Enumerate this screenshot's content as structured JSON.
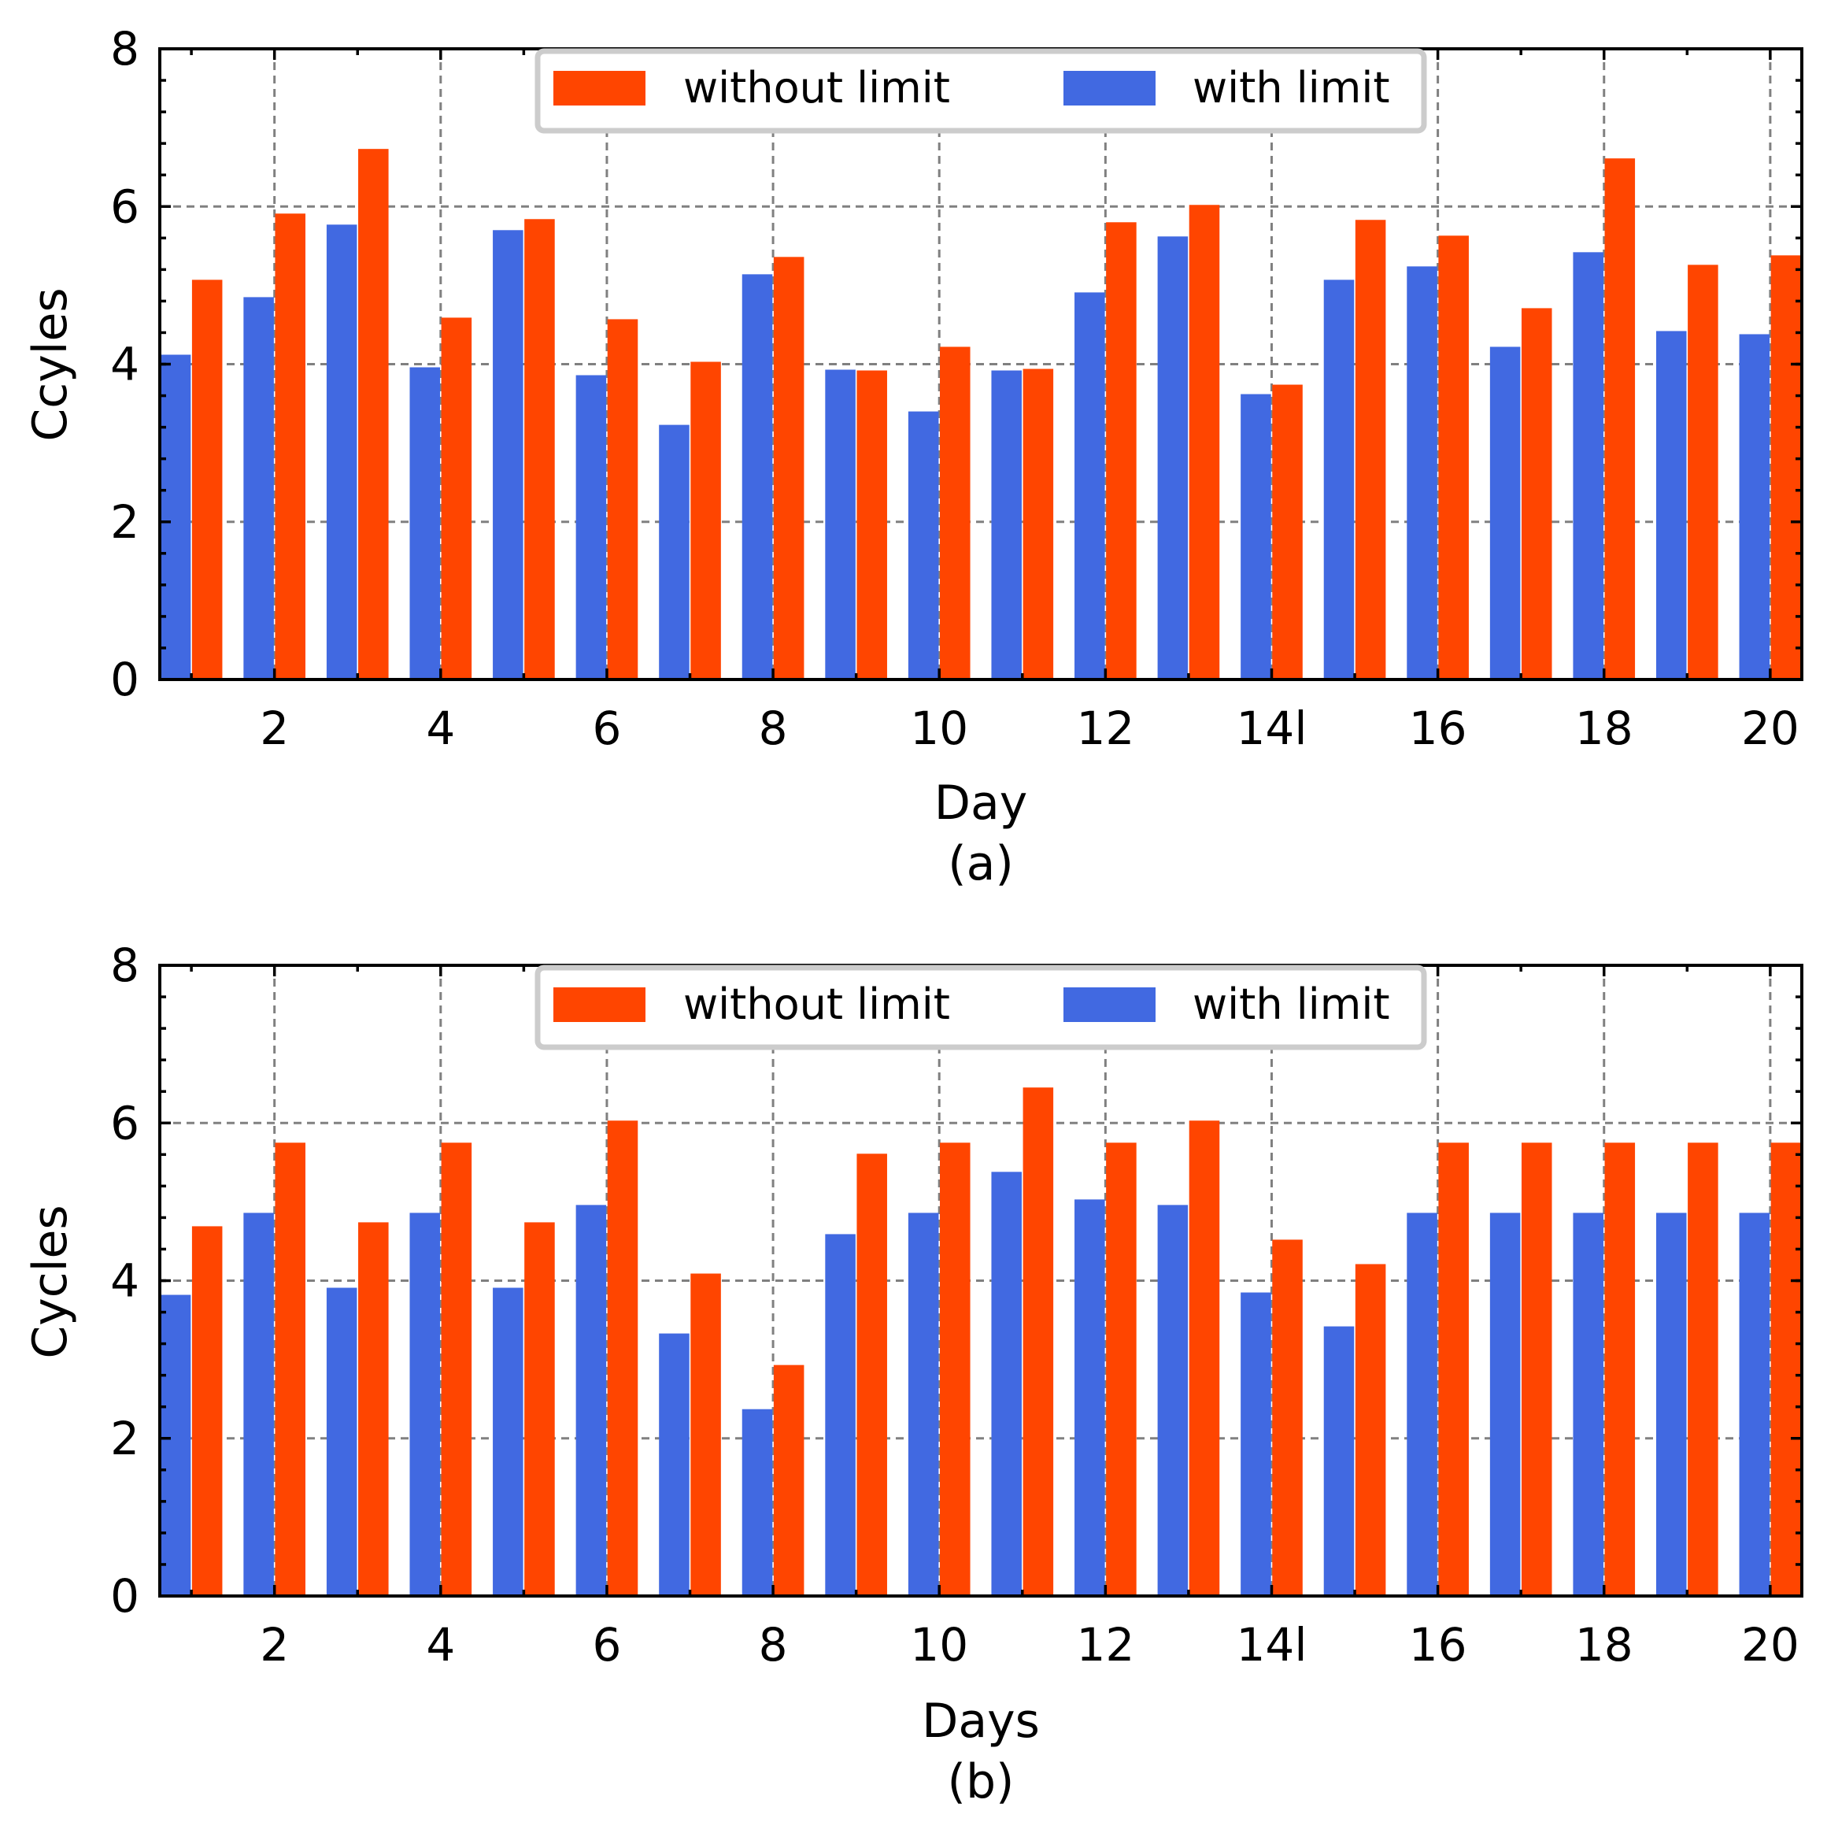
{
  "colors": {
    "without_limit": "#FF4500",
    "with_limit": "#4169E1"
  },
  "chart_data": [
    {
      "type": "bar",
      "panel_caption": "(a)",
      "xlabel": "Day",
      "ylabel": "Ccyles",
      "ylim": [
        0,
        8
      ],
      "xlim": [
        0.62,
        20.38
      ],
      "yticks": [
        "0",
        "2",
        "4",
        "6",
        "8"
      ],
      "xticks": [
        {
          "value": 2,
          "label": "2"
        },
        {
          "value": 4,
          "label": "4"
        },
        {
          "value": 6,
          "label": "6"
        },
        {
          "value": 8,
          "label": "8"
        },
        {
          "value": 10,
          "label": "10"
        },
        {
          "value": 12,
          "label": "12"
        },
        {
          "value": 14,
          "label": "14l"
        },
        {
          "value": 16,
          "label": "16"
        },
        {
          "value": 18,
          "label": "18"
        },
        {
          "value": 20,
          "label": "20"
        }
      ],
      "grid": true,
      "legend_position": "top-center",
      "categories": [
        1,
        2,
        3,
        4,
        5,
        6,
        7,
        8,
        9,
        10,
        11,
        12,
        13,
        14,
        15,
        16,
        17,
        18,
        19,
        20
      ],
      "series": [
        {
          "name": "with limit",
          "color_key": "with_limit",
          "offset": -0.19,
          "values": [
            4.12,
            4.85,
            5.77,
            3.96,
            5.7,
            3.86,
            3.23,
            5.14,
            3.93,
            3.4,
            3.92,
            4.91,
            5.62,
            3.62,
            5.07,
            5.24,
            4.22,
            5.42,
            4.42,
            4.38
          ]
        },
        {
          "name": "without limit",
          "color_key": "without_limit",
          "offset": 0.19,
          "values": [
            5.07,
            5.91,
            6.73,
            4.59,
            5.84,
            4.57,
            4.03,
            5.36,
            3.92,
            4.22,
            3.94,
            5.8,
            6.02,
            3.74,
            5.83,
            5.63,
            4.71,
            6.61,
            5.26,
            5.38
          ]
        }
      ],
      "legend": [
        "without limit",
        "with limit"
      ]
    },
    {
      "type": "bar",
      "panel_caption": "(b)",
      "xlabel": "Days",
      "ylabel": "Cycles",
      "ylim": [
        0,
        8
      ],
      "xlim": [
        0.62,
        20.38
      ],
      "yticks": [
        "0",
        "2",
        "4",
        "6",
        "8"
      ],
      "xticks": [
        {
          "value": 2,
          "label": "2"
        },
        {
          "value": 4,
          "label": "4"
        },
        {
          "value": 6,
          "label": "6"
        },
        {
          "value": 8,
          "label": "8"
        },
        {
          "value": 10,
          "label": "10"
        },
        {
          "value": 12,
          "label": "12"
        },
        {
          "value": 14,
          "label": "14l"
        },
        {
          "value": 16,
          "label": "16"
        },
        {
          "value": 18,
          "label": "18"
        },
        {
          "value": 20,
          "label": "20"
        }
      ],
      "grid": true,
      "legend_position": "top-center",
      "categories": [
        1,
        2,
        3,
        4,
        5,
        6,
        7,
        8,
        9,
        10,
        11,
        12,
        13,
        14,
        15,
        16,
        17,
        18,
        19,
        20
      ],
      "series": [
        {
          "name": "with limit",
          "color_key": "with_limit",
          "offset": -0.19,
          "values": [
            3.82,
            4.86,
            3.91,
            4.86,
            3.91,
            4.96,
            3.33,
            2.37,
            4.59,
            4.86,
            5.38,
            5.03,
            4.96,
            3.85,
            3.42,
            4.86,
            4.86,
            4.86,
            4.86,
            4.86
          ]
        },
        {
          "name": "without limit",
          "color_key": "without_limit",
          "offset": 0.19,
          "values": [
            4.69,
            5.75,
            4.74,
            5.75,
            4.74,
            6.03,
            4.09,
            2.93,
            5.61,
            5.75,
            6.45,
            5.75,
            6.03,
            4.52,
            4.21,
            5.75,
            5.75,
            5.75,
            5.75,
            5.75
          ]
        }
      ],
      "legend": [
        "without limit",
        "with limit"
      ]
    }
  ]
}
